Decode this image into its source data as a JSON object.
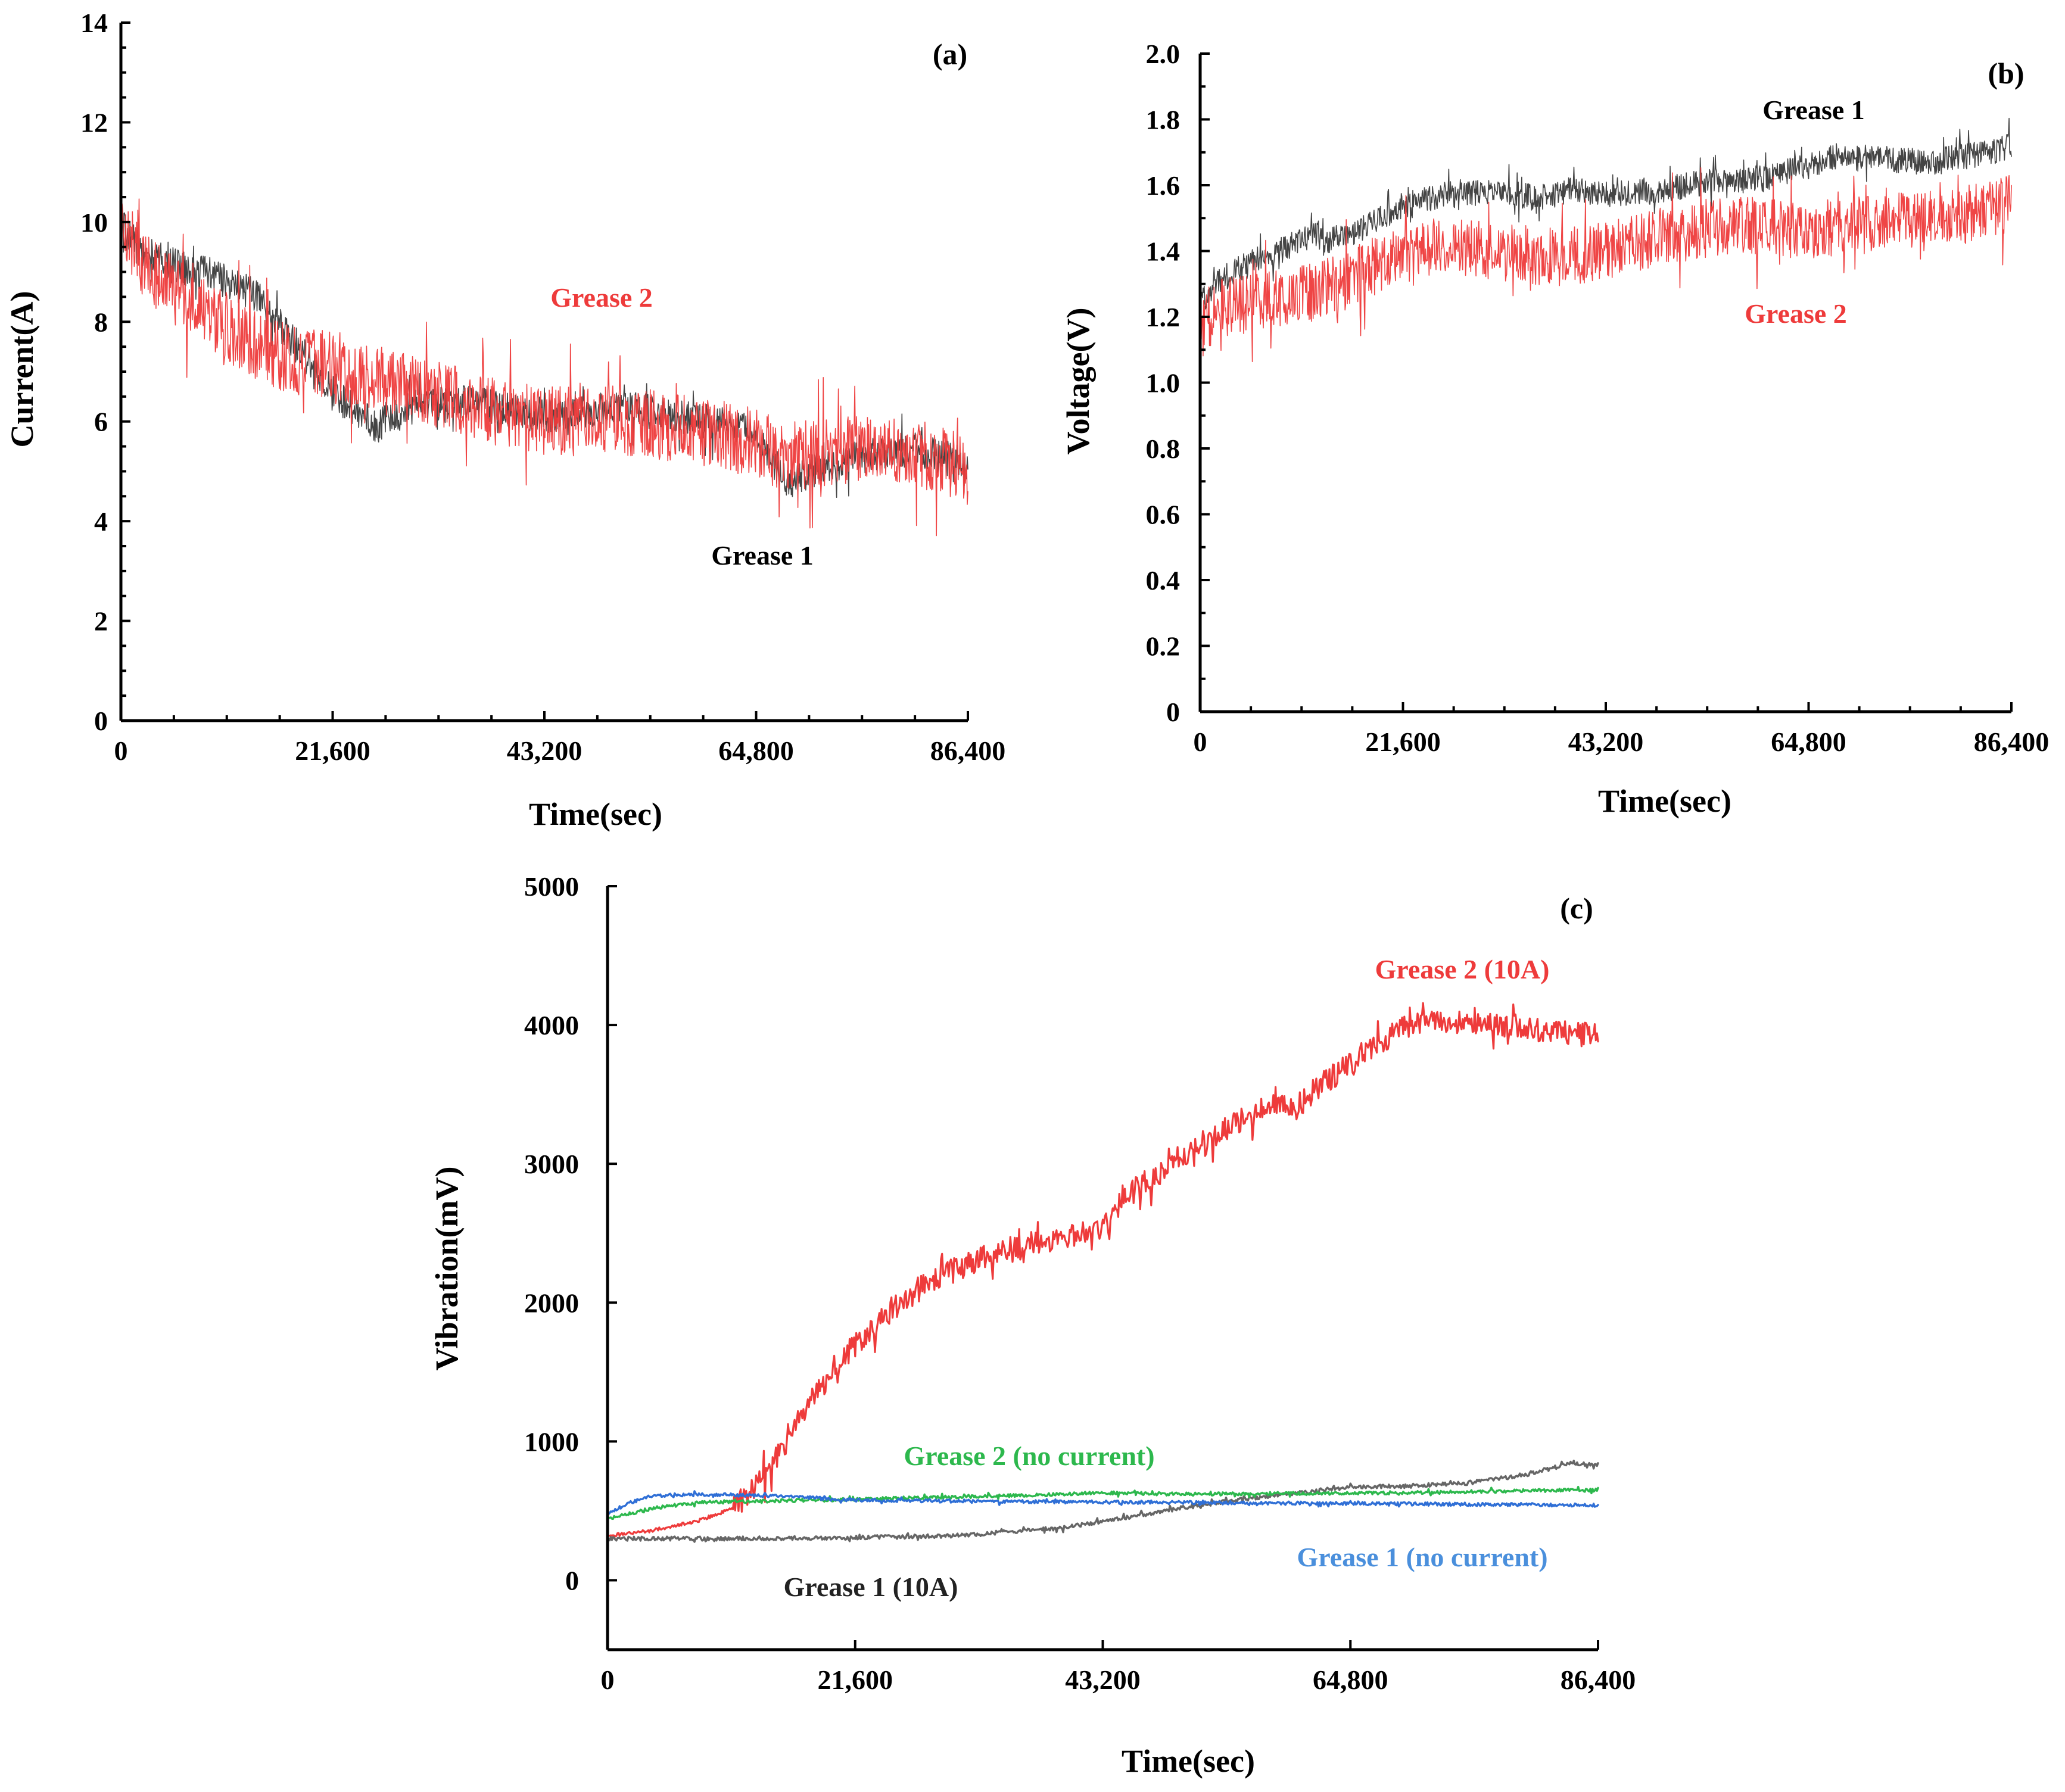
{
  "chart_data": [
    {
      "id": "a",
      "type": "line",
      "panel_label": "(a)",
      "xlabel": "Time(sec)",
      "ylabel": "Current(A)",
      "xlim": [
        0,
        86400
      ],
      "ylim": [
        0,
        14
      ],
      "xticks": [
        0,
        21600,
        43200,
        64800,
        86400
      ],
      "xtick_labels": [
        "0",
        "21,600",
        "43,200",
        "64,800",
        "86,400"
      ],
      "yticks": [
        0,
        2,
        4,
        6,
        8,
        10,
        12,
        14
      ],
      "ytick_labels": [
        "0",
        "2",
        "4",
        "6",
        "8",
        "10",
        "12",
        "14"
      ],
      "series": [
        {
          "name": "Grease 1",
          "label": "Grease 1",
          "color": "#3a3a3a",
          "noise": 0.35,
          "x": [
            0,
            2000,
            6000,
            10000,
            14000,
            18000,
            22000,
            26000,
            30000,
            35000,
            40000,
            43200,
            48000,
            52000,
            56000,
            60000,
            64000,
            68000,
            72000,
            76000,
            80000,
            84000,
            86400
          ],
          "y": [
            10.0,
            9.4,
            9.1,
            8.9,
            8.5,
            7.5,
            6.5,
            5.9,
            6.3,
            6.4,
            6.2,
            6.1,
            6.2,
            6.3,
            6.1,
            6.0,
            5.8,
            4.8,
            5.1,
            5.3,
            5.4,
            5.3,
            5.0
          ]
        },
        {
          "name": "Grease 2",
          "label": "Grease 2",
          "color": "#ee3b3b",
          "noise": 0.7,
          "x": [
            0,
            2000,
            6000,
            10000,
            14000,
            18000,
            22000,
            26000,
            30000,
            35000,
            40000,
            43200,
            48000,
            52000,
            56000,
            60000,
            64000,
            68000,
            72000,
            76000,
            80000,
            84000,
            86400
          ],
          "y": [
            10.2,
            9.2,
            8.5,
            8.0,
            7.5,
            7.2,
            7.1,
            6.9,
            6.6,
            6.4,
            6.1,
            6.0,
            6.1,
            6.0,
            5.9,
            5.8,
            5.6,
            5.3,
            5.4,
            5.5,
            5.4,
            5.2,
            5.0
          ]
        }
      ]
    },
    {
      "id": "b",
      "type": "line",
      "panel_label": "(b)",
      "xlabel": "Time(sec)",
      "ylabel": "Voltage(V)",
      "xlim": [
        0,
        86400
      ],
      "ylim": [
        0,
        2.0
      ],
      "xticks": [
        0,
        21600,
        43200,
        64800,
        86400
      ],
      "xtick_labels": [
        "0",
        "21,600",
        "43,200",
        "64,800",
        "86,400"
      ],
      "yticks": [
        0,
        0.2,
        0.4,
        0.6,
        0.8,
        1.0,
        1.2,
        1.4,
        1.6,
        1.8,
        2.0
      ],
      "ytick_labels": [
        "0",
        "0.2",
        "0.4",
        "0.6",
        "0.8",
        "1.0",
        "1.2",
        "1.4",
        "1.6",
        "1.8",
        "2.0"
      ],
      "series": [
        {
          "name": "Grease 1",
          "label": "Grease 1",
          "color": "#3a3a3a",
          "noise": 0.04,
          "x": [
            0,
            1500,
            5000,
            10000,
            12500,
            13000,
            18000,
            21600,
            26000,
            32000,
            36000,
            40000,
            43200,
            48000,
            54000,
            60000,
            64800,
            68000,
            72000,
            78000,
            84000,
            86400
          ],
          "y": [
            1.24,
            1.3,
            1.36,
            1.42,
            1.46,
            1.42,
            1.48,
            1.54,
            1.57,
            1.58,
            1.56,
            1.59,
            1.57,
            1.58,
            1.61,
            1.62,
            1.66,
            1.69,
            1.68,
            1.67,
            1.7,
            1.72
          ]
        },
        {
          "name": "Grease 2",
          "label": "Grease 2",
          "color": "#ee3b3b",
          "noise": 0.09,
          "x": [
            0,
            1500,
            5000,
            10000,
            15000,
            21600,
            26000,
            32000,
            38000,
            43200,
            48000,
            54000,
            60000,
            64800,
            68000,
            72000,
            78000,
            84000,
            86400
          ],
          "y": [
            1.15,
            1.22,
            1.24,
            1.26,
            1.3,
            1.4,
            1.42,
            1.4,
            1.38,
            1.4,
            1.44,
            1.47,
            1.48,
            1.46,
            1.47,
            1.48,
            1.5,
            1.52,
            1.55
          ]
        }
      ]
    },
    {
      "id": "c",
      "type": "line",
      "panel_label": "(c)",
      "xlabel": "Time(sec)",
      "ylabel": "Vibration(mV)",
      "xlim": [
        0,
        86400
      ],
      "ylim": [
        -500,
        5000
      ],
      "xticks": [
        0,
        21600,
        43200,
        64800,
        86400
      ],
      "xtick_labels": [
        "0",
        "21,600",
        "43,200",
        "64,800",
        "86,400"
      ],
      "yticks": [
        0,
        1000,
        2000,
        3000,
        4000,
        5000
      ],
      "ytick_labels": [
        "0",
        "1000",
        "2000",
        "3000",
        "4000",
        "5000"
      ],
      "series": [
        {
          "name": "Grease 2 (10A)",
          "label": "Grease 2 (10A)",
          "color": "#ee3b3b",
          "noise": 90,
          "x": [
            0,
            4000,
            8000,
            11000,
            14000,
            17000,
            20000,
            24000,
            28000,
            32000,
            36000,
            40000,
            43000,
            45000,
            50000,
            55000,
            58000,
            60000,
            62000,
            66000,
            70000,
            75000,
            80000,
            86400
          ],
          "y": [
            320,
            360,
            430,
            520,
            780,
            1200,
            1550,
            1900,
            2150,
            2300,
            2400,
            2480,
            2500,
            2750,
            3050,
            3300,
            3450,
            3400,
            3550,
            3800,
            4000,
            4020,
            3980,
            3920
          ]
        },
        {
          "name": "Grease 1 (10A)",
          "label": "Grease 1 (10A)",
          "color": "#666666",
          "noise": 15,
          "x": [
            0,
            10000,
            20000,
            30000,
            40000,
            45000,
            50000,
            55000,
            60000,
            65000,
            70000,
            75000,
            80000,
            84000,
            86400
          ],
          "y": [
            300,
            300,
            305,
            320,
            380,
            450,
            520,
            580,
            630,
            670,
            680,
            700,
            760,
            840,
            830
          ]
        },
        {
          "name": "Grease 2 (no current)",
          "label": "Grease 2 (no current)",
          "color": "#2db84d",
          "noise": 12,
          "x": [
            0,
            2000,
            4000,
            8000,
            13000,
            20000,
            30000,
            40000,
            43000,
            50000,
            60000,
            70000,
            80000,
            86400
          ],
          "y": [
            440,
            480,
            520,
            560,
            570,
            580,
            600,
            620,
            630,
            620,
            625,
            630,
            645,
            650
          ]
        },
        {
          "name": "Grease 1 (no current)",
          "label": "Grease 1 (no current)",
          "color": "#2f6fd6",
          "noise": 12,
          "x": [
            0,
            2000,
            4000,
            8000,
            13000,
            17000,
            20000,
            30000,
            40000,
            50000,
            60000,
            70000,
            80000,
            86400
          ],
          "y": [
            480,
            560,
            610,
            620,
            610,
            600,
            580,
            570,
            565,
            560,
            555,
            550,
            545,
            540
          ]
        }
      ]
    }
  ]
}
